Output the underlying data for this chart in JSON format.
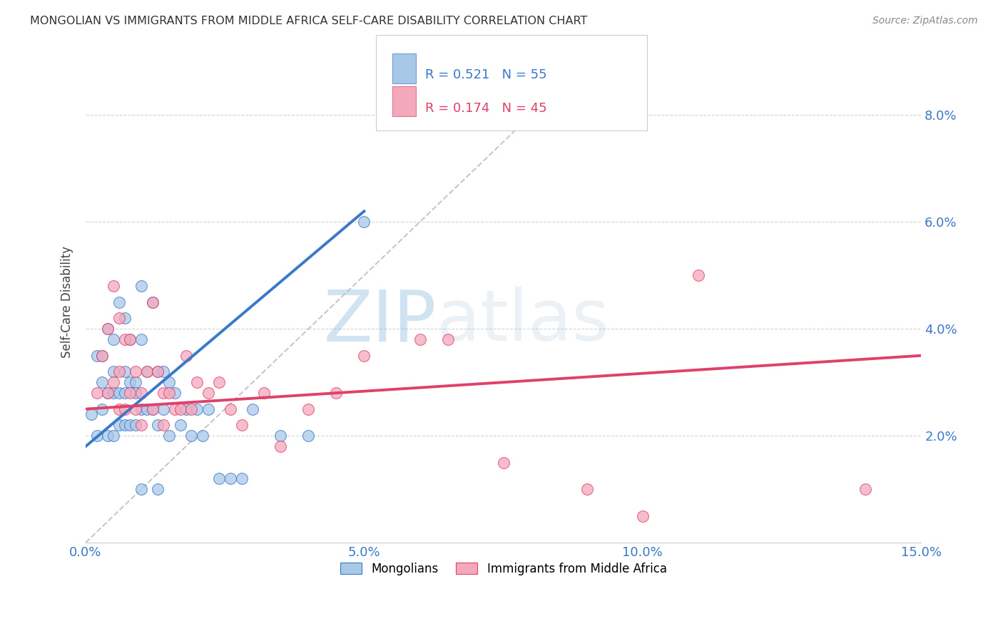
{
  "title": "MONGOLIAN VS IMMIGRANTS FROM MIDDLE AFRICA SELF-CARE DISABILITY CORRELATION CHART",
  "source": "Source: ZipAtlas.com",
  "ylabel": "Self-Care Disability",
  "legend_mongolians": "Mongolians",
  "legend_immigrants": "Immigrants from Middle Africa",
  "R_mongolian": 0.521,
  "N_mongolian": 55,
  "R_immigrant": 0.174,
  "N_immigrant": 45,
  "xlim": [
    0.0,
    0.15
  ],
  "ylim": [
    0.0,
    0.09
  ],
  "yticks": [
    0.02,
    0.04,
    0.06,
    0.08
  ],
  "ytick_labels": [
    "2.0%",
    "4.0%",
    "6.0%",
    "8.0%"
  ],
  "xticks": [
    0.0,
    0.05,
    0.1,
    0.15
  ],
  "xtick_labels": [
    "0.0%",
    "5.0%",
    "10.0%",
    "15.0%"
  ],
  "color_mongolian": "#a8c8e8",
  "color_immigrant": "#f4a8bc",
  "line_color_mongolian": "#3a78c9",
  "line_color_immigrant": "#e0406a",
  "line_color_diagonal": "#b8b8c8",
  "watermark_zip": "ZIP",
  "watermark_atlas": "atlas",
  "mongolian_trend_x": [
    0.0,
    0.05
  ],
  "mongolian_trend_y": [
    0.018,
    0.062
  ],
  "immigrant_trend_x": [
    0.0,
    0.15
  ],
  "immigrant_trend_y": [
    0.025,
    0.035
  ],
  "mongolian_x": [
    0.001,
    0.002,
    0.002,
    0.003,
    0.003,
    0.003,
    0.004,
    0.004,
    0.004,
    0.005,
    0.005,
    0.005,
    0.005,
    0.006,
    0.006,
    0.006,
    0.007,
    0.007,
    0.007,
    0.007,
    0.008,
    0.008,
    0.008,
    0.009,
    0.009,
    0.009,
    0.01,
    0.01,
    0.01,
    0.011,
    0.011,
    0.012,
    0.012,
    0.013,
    0.013,
    0.014,
    0.014,
    0.015,
    0.015,
    0.016,
    0.017,
    0.018,
    0.019,
    0.02,
    0.021,
    0.022,
    0.024,
    0.026,
    0.028,
    0.03,
    0.035,
    0.04,
    0.05,
    0.01,
    0.013
  ],
  "mongolian_y": [
    0.024,
    0.035,
    0.02,
    0.035,
    0.03,
    0.025,
    0.028,
    0.04,
    0.02,
    0.038,
    0.028,
    0.032,
    0.02,
    0.045,
    0.028,
    0.022,
    0.042,
    0.032,
    0.028,
    0.022,
    0.038,
    0.03,
    0.022,
    0.03,
    0.028,
    0.022,
    0.048,
    0.038,
    0.025,
    0.032,
    0.025,
    0.045,
    0.025,
    0.032,
    0.022,
    0.032,
    0.025,
    0.03,
    0.02,
    0.028,
    0.022,
    0.025,
    0.02,
    0.025,
    0.02,
    0.025,
    0.012,
    0.012,
    0.012,
    0.025,
    0.02,
    0.02,
    0.06,
    0.01,
    0.01
  ],
  "immigrant_x": [
    0.002,
    0.003,
    0.004,
    0.004,
    0.005,
    0.005,
    0.006,
    0.006,
    0.006,
    0.007,
    0.007,
    0.008,
    0.008,
    0.009,
    0.009,
    0.01,
    0.01,
    0.011,
    0.012,
    0.012,
    0.013,
    0.014,
    0.014,
    0.015,
    0.016,
    0.017,
    0.018,
    0.019,
    0.02,
    0.022,
    0.024,
    0.026,
    0.028,
    0.032,
    0.035,
    0.04,
    0.045,
    0.05,
    0.06,
    0.065,
    0.075,
    0.09,
    0.1,
    0.11,
    0.14
  ],
  "immigrant_y": [
    0.028,
    0.035,
    0.04,
    0.028,
    0.048,
    0.03,
    0.042,
    0.032,
    0.025,
    0.038,
    0.025,
    0.038,
    0.028,
    0.032,
    0.025,
    0.028,
    0.022,
    0.032,
    0.045,
    0.025,
    0.032,
    0.028,
    0.022,
    0.028,
    0.025,
    0.025,
    0.035,
    0.025,
    0.03,
    0.028,
    0.03,
    0.025,
    0.022,
    0.028,
    0.018,
    0.025,
    0.028,
    0.035,
    0.038,
    0.038,
    0.015,
    0.01,
    0.005,
    0.05,
    0.01
  ]
}
